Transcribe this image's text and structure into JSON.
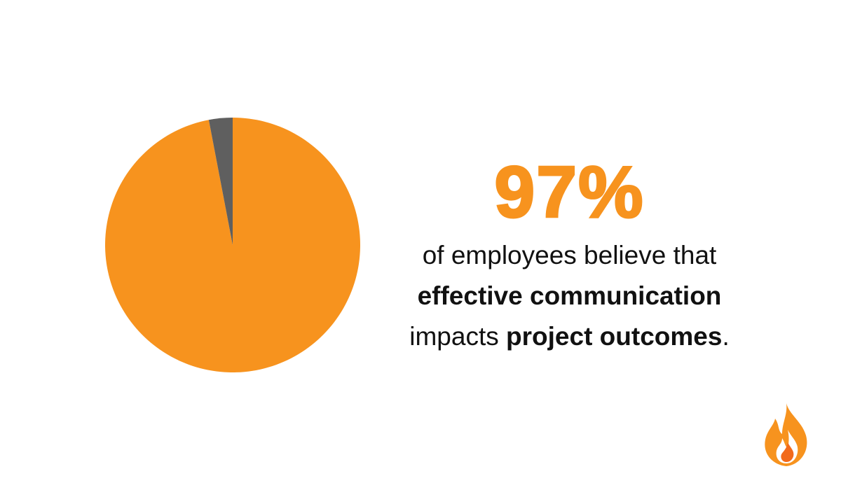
{
  "chart_data": {
    "type": "pie",
    "values": [
      97,
      3
    ],
    "value_labels": [
      "97%",
      null
    ],
    "colors": [
      "#f7931e",
      "#5f5f5f"
    ],
    "caption_lines": [
      [
        {
          "text": "of employees believe that",
          "bold": false
        }
      ],
      [
        {
          "text": "effective communication",
          "bold": true
        }
      ],
      [
        {
          "text": "impacts ",
          "bold": false
        },
        {
          "text": "project outcomes",
          "bold": true
        },
        {
          "text": ".",
          "bold": false
        }
      ]
    ]
  }
}
